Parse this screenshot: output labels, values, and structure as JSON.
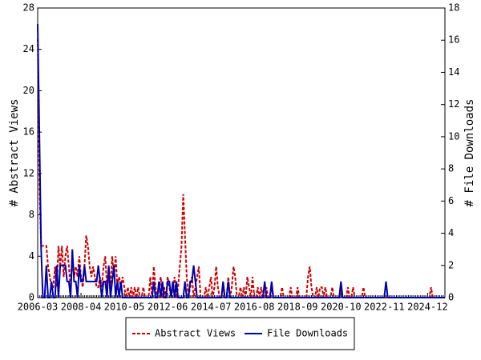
{
  "chart_data": {
    "type": "line",
    "categories": [
      "2006-03",
      null,
      null,
      null,
      null,
      null,
      null,
      null,
      null,
      null,
      null,
      null,
      null,
      null,
      null,
      null,
      null,
      null,
      null,
      null,
      null,
      null,
      null,
      null,
      null,
      "2008-04",
      null,
      null,
      null,
      null,
      null,
      null,
      null,
      null,
      null,
      null,
      null,
      null,
      null,
      null,
      null,
      null,
      null,
      null,
      null,
      null,
      null,
      null,
      null,
      null,
      "2010-05",
      null,
      null,
      null,
      null,
      null,
      null,
      null,
      null,
      null,
      null,
      null,
      null,
      null,
      null,
      null,
      null,
      null,
      null,
      null,
      null,
      null,
      null,
      null,
      null,
      "2012-06",
      null,
      null,
      null,
      null,
      null,
      null,
      null,
      null,
      null,
      null,
      null,
      null,
      null,
      null,
      null,
      null,
      null,
      null,
      null,
      null,
      null,
      null,
      null,
      null,
      "2014-07",
      null,
      null,
      null,
      null,
      null,
      null,
      null,
      null,
      null,
      null,
      null,
      null,
      null,
      null,
      null,
      null,
      null,
      null,
      null,
      null,
      null,
      null,
      null,
      null,
      "2016-08",
      null,
      null,
      null,
      null,
      null,
      null,
      null,
      null,
      null,
      null,
      null,
      null,
      null,
      null,
      null,
      null,
      null,
      null,
      null,
      null,
      null,
      null,
      null,
      null,
      "2018-09",
      null,
      null,
      null,
      null,
      null,
      null,
      null,
      null,
      null,
      null,
      null,
      null,
      null,
      null,
      null,
      null,
      null,
      null,
      null,
      null,
      null,
      null,
      null,
      null,
      "2020-10",
      null,
      null,
      null,
      null,
      null,
      null,
      null,
      null,
      null,
      null,
      null,
      null,
      null,
      null,
      null,
      null,
      null,
      null,
      null,
      null,
      null,
      null,
      null,
      null,
      "2022-11",
      null,
      null,
      null,
      null,
      null,
      null,
      null,
      null,
      null,
      null,
      null,
      null,
      null,
      null,
      null,
      null,
      null,
      null,
      null,
      null,
      null,
      null,
      null,
      null,
      "2024-12",
      null,
      null,
      null,
      null,
      null,
      null,
      null,
      null,
      null,
      null
    ],
    "series": [
      {
        "name": "Abstract Views",
        "color": "#cc0000",
        "dash": true,
        "values": [
          25,
          11,
          5,
          5,
          5,
          5,
          3,
          2,
          1,
          1,
          3,
          1,
          5,
          3,
          5,
          2,
          4,
          5,
          3,
          1,
          4,
          2,
          3,
          2,
          4,
          2,
          1,
          3,
          6,
          5,
          3,
          2,
          3,
          2,
          1,
          1,
          2,
          1,
          3,
          4,
          1,
          3,
          1,
          4,
          2,
          4,
          1,
          2,
          1,
          2,
          1,
          0,
          1,
          0,
          1,
          0,
          1,
          0,
          1,
          0,
          0,
          1,
          0,
          0,
          0,
          2,
          0,
          3,
          1,
          0,
          1,
          2,
          0,
          1,
          0,
          2,
          1,
          0,
          1,
          2,
          0,
          1,
          3,
          5,
          10,
          6,
          2,
          0,
          1,
          2,
          0,
          1,
          2,
          3,
          0,
          0,
          0,
          1,
          0,
          1,
          2,
          0,
          1,
          3,
          1,
          0,
          0,
          1,
          0,
          0,
          2,
          0,
          1,
          3,
          2,
          0,
          0,
          1,
          0,
          1,
          0,
          2,
          1,
          0,
          2,
          0,
          0,
          1,
          0,
          1,
          0,
          0,
          1,
          0,
          0,
          1,
          0,
          0,
          0,
          0,
          0,
          1,
          0,
          0,
          0,
          0,
          1,
          0,
          0,
          0,
          1,
          0,
          0,
          0,
          0,
          0,
          2,
          3,
          1,
          0,
          0,
          1,
          0,
          1,
          1,
          0,
          1,
          0,
          0,
          0,
          1,
          0,
          0,
          0,
          0,
          1,
          0,
          0,
          0,
          1,
          0,
          0,
          1,
          0,
          0,
          0,
          0,
          0,
          1,
          0,
          0,
          0,
          0,
          0,
          0,
          0,
          0,
          0,
          0,
          0,
          0,
          0,
          0,
          0,
          0,
          0,
          0,
          0,
          0,
          0,
          0,
          0,
          0,
          0,
          0,
          0,
          0,
          0,
          0,
          0,
          0,
          0,
          0,
          0,
          0,
          0,
          0,
          1,
          0,
          0,
          0,
          0,
          0,
          0,
          0,
          0
        ]
      },
      {
        "name": "File Downloads",
        "color": "#0000aa",
        "axis": "y2",
        "values": [
          17,
          10,
          3,
          0,
          0,
          2,
          0,
          0,
          1,
          0,
          0,
          2,
          0,
          2,
          2,
          2,
          2,
          1,
          1,
          0,
          3,
          1,
          1,
          0,
          2,
          1,
          1,
          2,
          1,
          1,
          1,
          1,
          1,
          1,
          1,
          2,
          1,
          0,
          1,
          1,
          0,
          2,
          0,
          1,
          2,
          0,
          1,
          0,
          1,
          0,
          0,
          0,
          0,
          0,
          0,
          0,
          0,
          0,
          0,
          0,
          0,
          0,
          0,
          0,
          0,
          0,
          0,
          1,
          0,
          0,
          1,
          0,
          1,
          0,
          0,
          1,
          1,
          0,
          1,
          0,
          1,
          0,
          0,
          0,
          0,
          1,
          0,
          0,
          1,
          1,
          2,
          1,
          0,
          0,
          0,
          0,
          0,
          0,
          0,
          0,
          0,
          0,
          0,
          0,
          0,
          0,
          0,
          1,
          0,
          0,
          1,
          0,
          0,
          0,
          0,
          0,
          0,
          0,
          0,
          0,
          0,
          0,
          0,
          0,
          0,
          0,
          0,
          0,
          0,
          0,
          0,
          1,
          0,
          0,
          0,
          1,
          0,
          0,
          0,
          0,
          0,
          0,
          0,
          0,
          0,
          0,
          0,
          0,
          0,
          0,
          0,
          0,
          0,
          0,
          0,
          0,
          0,
          0,
          0,
          0,
          0,
          0,
          0,
          0,
          0,
          0,
          0,
          0,
          0,
          0,
          0,
          0,
          0,
          0,
          0,
          1,
          0,
          0,
          0,
          0,
          0,
          0,
          0,
          0,
          0,
          0,
          0,
          0,
          0,
          0,
          0,
          0,
          0,
          0,
          0,
          0,
          0,
          0,
          0,
          0,
          0,
          1,
          0,
          0,
          0,
          0,
          0,
          0,
          0,
          0,
          0,
          0,
          0,
          0,
          0,
          0,
          0,
          0,
          0,
          0,
          0,
          0,
          0,
          0,
          0,
          0,
          0,
          0,
          0,
          0,
          0,
          0,
          0,
          0,
          0,
          0
        ]
      }
    ],
    "ylabel": "# Abstract Views",
    "y2label": "# File Downloads",
    "ylim": [
      0,
      28
    ],
    "yticks": [
      0,
      4,
      8,
      12,
      16,
      20,
      24,
      28
    ],
    "y2lim": [
      0,
      18
    ],
    "y2ticks": [
      0,
      2,
      4,
      6,
      8,
      10,
      12,
      14,
      16,
      18
    ],
    "legend": "bottom"
  }
}
